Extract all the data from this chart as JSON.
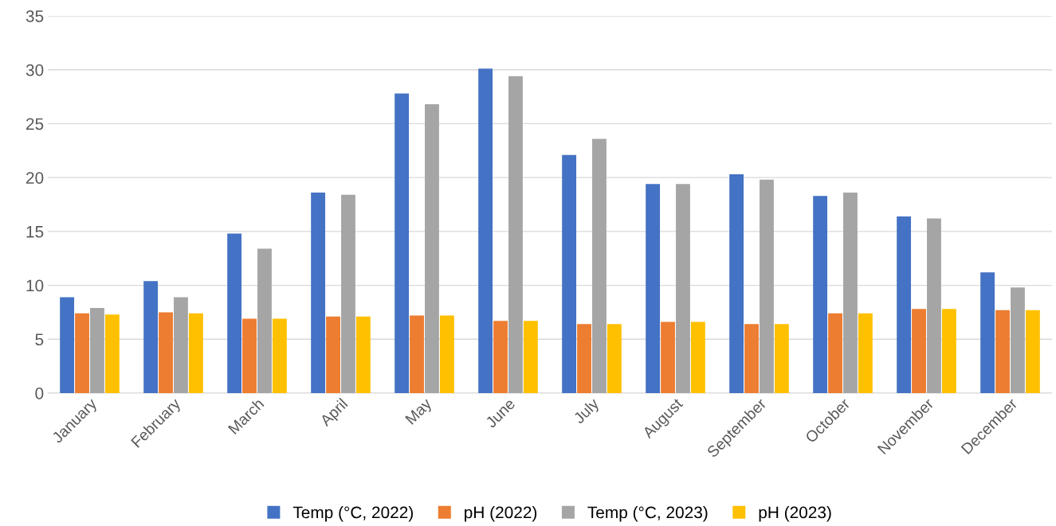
{
  "chart_data": {
    "type": "bar",
    "categories": [
      "January",
      "February",
      "March",
      "April",
      "May",
      "June",
      "July",
      "August",
      "September",
      "October",
      "November",
      "December"
    ],
    "series": [
      {
        "name": "Temp (°C, 2022)",
        "color": "#4472c4",
        "values": [
          8.9,
          10.4,
          14.8,
          18.6,
          27.8,
          30.1,
          22.1,
          19.4,
          20.3,
          18.3,
          16.4,
          11.2
        ]
      },
      {
        "name": "pH (2022)",
        "color": "#ed7d31",
        "values": [
          7.4,
          7.5,
          6.9,
          7.1,
          7.2,
          6.7,
          6.4,
          6.6,
          6.4,
          7.4,
          7.8,
          7.7
        ]
      },
      {
        "name": "Temp (°C, 2023)",
        "color": "#a5a5a5",
        "values": [
          7.9,
          8.9,
          13.4,
          18.4,
          26.8,
          29.4,
          23.6,
          19.4,
          19.8,
          18.6,
          16.2,
          9.8
        ]
      },
      {
        "name": "pH (2023)",
        "color": "#ffc000",
        "values": [
          7.3,
          7.4,
          6.9,
          7.1,
          7.2,
          6.7,
          6.4,
          6.6,
          6.4,
          7.4,
          7.8,
          7.7
        ]
      }
    ],
    "ylim": [
      0,
      35
    ],
    "yticks": [
      0,
      5,
      10,
      15,
      20,
      25,
      30,
      35
    ],
    "grid": "y",
    "legend": "bottom"
  }
}
